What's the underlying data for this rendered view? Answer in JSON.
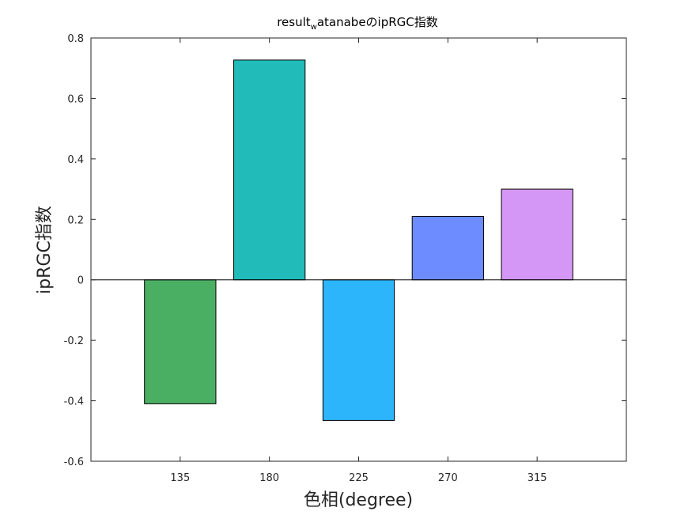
{
  "chart_data": {
    "type": "bar",
    "title_main": "result",
    "title_subscript": "w",
    "title_rest": "atanabeのipRGC指数",
    "xlabel": "色相(degree)",
    "ylabel": "ipRGC指数",
    "categories": [
      "135",
      "180",
      "225",
      "270",
      "315"
    ],
    "values": [
      -0.41,
      0.727,
      -0.465,
      0.21,
      0.3
    ],
    "colors": [
      "#4aaf63",
      "#21bcb9",
      "#2db5fc",
      "#6d8cff",
      "#d597f5"
    ],
    "ylim": [
      -0.6,
      0.8
    ],
    "yticks": [
      -0.6,
      -0.4,
      -0.2,
      0,
      0.2,
      0.4,
      0.6,
      0.8
    ],
    "ytick_labels": [
      "-0.6",
      "-0.4",
      "-0.2",
      "0",
      "0.2",
      "0.4",
      "0.6",
      "0.8"
    ],
    "grid": false,
    "legend": "none",
    "baseline": 0
  }
}
